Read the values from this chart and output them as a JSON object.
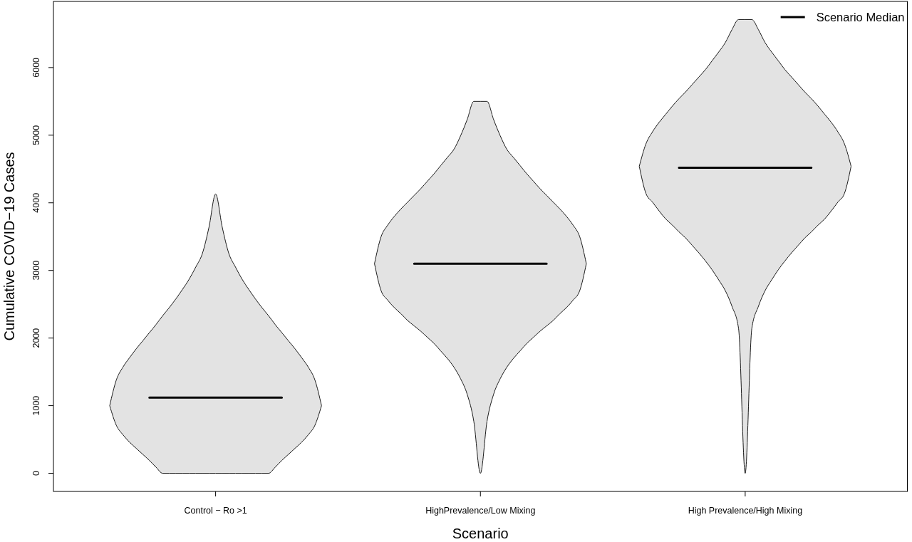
{
  "chart_data": {
    "type": "line",
    "xlabel": "Scenario",
    "ylabel": "Cumulative COVID−19 Cases",
    "categories": [
      null,
      null,
      null,
      null,
      null,
      null,
      null,
      null,
      null,
      null,
      null,
      null,
      null,
      null,
      null,
      null,
      null,
      null,
      null,
      null,
      null,
      null,
      null,
      null,
      "Control − Ro >1",
      null,
      null,
      null,
      null,
      null,
      null,
      null,
      null,
      null,
      null,
      null,
      null,
      null,
      null,
      null,
      null,
      null,
      null,
      null,
      null,
      null,
      null,
      null,
      null,
      null,
      null,
      null,
      null,
      null,
      null,
      null,
      null,
      null,
      null,
      null,
      null,
      null,
      null,
      null,
      "HighPrevalence/Low Mixing",
      null,
      null,
      null,
      null,
      null,
      null,
      null,
      null,
      null,
      null,
      null,
      null,
      null,
      null,
      null,
      null,
      null,
      null,
      null,
      null,
      null,
      null,
      null,
      null,
      null,
      null,
      null,
      null,
      null,
      null,
      null,
      null,
      null,
      null,
      null,
      null,
      null,
      null,
      null,
      "High Prevalence/High Mixing",
      null,
      null,
      null,
      null,
      null,
      null,
      null,
      null,
      null,
      null,
      null,
      null,
      null,
      null,
      null,
      null,
      null,
      null,
      null,
      null,
      null,
      null,
      null,
      null
    ],
    "ylim": [
      -268,
      6978
    ],
    "yticks": [
      0,
      1000,
      2000,
      3000,
      4000,
      5000,
      6000
    ],
    "legend": "top right",
    "series": [
      {
        "type": "area",
        "color": "#e3e3e3",
        "values": [
          null,
          null,
          null,
          null,
          null,
          null,
          null,
          null,
          null,
          null,
          null,
          null,
          null,
          null,
          null,
          null,
          null,
          null,
          null,
          null,
          null,
          null,
          null,
          null,
          null,
          null,
          null,
          null,
          null,
          null,
          null,
          null,
          null,
          null,
          null,
          null,
          null,
          null,
          null,
          null,
          null,
          null,
          null,
          null,
          null,
          null,
          null,
          null,
          null,
          null,
          null,
          null,
          null,
          null,
          null,
          null,
          null,
          null,
          null,
          null,
          null,
          null,
          null,
          null,
          null,
          null,
          null,
          null,
          null,
          null,
          null,
          null,
          null,
          null,
          null,
          null,
          null,
          null,
          null,
          null,
          null,
          null,
          null,
          null,
          null,
          null,
          null,
          null,
          null,
          null,
          null,
          null,
          null,
          null,
          null,
          null,
          null,
          null,
          null,
          null,
          null,
          null,
          null,
          null,
          null,
          null,
          null,
          null,
          null,
          null,
          null,
          null,
          null,
          null,
          null,
          null,
          null,
          null,
          null,
          null,
          null,
          null,
          null,
          null,
          null,
          null,
          null,
          null,
          null
        ],
        "lower": [
          null,
          null,
          null,
          null,
          null,
          null,
          null,
          null,
          1000,
          710,
          570,
          460,
          370,
          280,
          190,
          90,
          0,
          0,
          0,
          0,
          0,
          0,
          0,
          0,
          0,
          0,
          0,
          0,
          0,
          0,
          0,
          0,
          0,
          90,
          190,
          280,
          370,
          460,
          570,
          710,
          1000,
          null,
          null,
          null,
          null,
          null,
          null,
          null,
          null,
          null,
          null,
          null,
          null,
          null,
          null,
          null,
          null,
          null,
          null,
          null,
          null,
          null,
          null,
          null,
          null,
          null,
          null,
          null,
          null,
          null,
          null,
          null,
          null,
          null,
          null,
          null,
          null,
          null,
          null,
          null,
          null,
          null,
          null,
          null,
          null,
          null,
          null,
          null,
          null,
          null,
          null,
          null,
          null,
          null,
          null,
          null,
          null,
          null,
          null,
          null,
          null,
          null,
          null,
          null,
          null,
          null,
          null,
          null,
          null,
          null,
          null,
          null,
          null,
          null,
          null,
          null,
          null,
          null,
          null,
          null,
          null,
          null,
          null,
          null,
          null,
          null,
          null,
          null,
          null
        ],
        "upper": [
          null,
          null,
          null,
          null,
          null,
          null,
          null,
          null,
          1000,
          1380,
          1570,
          1710,
          1840,
          1960,
          2080,
          2200,
          2330,
          2450,
          2580,
          2720,
          2870,
          3050,
          3250,
          3640,
          4130,
          3640,
          3250,
          3050,
          2870,
          2720,
          2580,
          2450,
          2330,
          2200,
          2080,
          1960,
          1840,
          1710,
          1570,
          1380,
          1000,
          null,
          null,
          null,
          null,
          null,
          null,
          null,
          null,
          null,
          null,
          null,
          null,
          null,
          null,
          null,
          null,
          null,
          null,
          null,
          null,
          null,
          null,
          null,
          null,
          null,
          null,
          null,
          null,
          null,
          null,
          null,
          null,
          null,
          null,
          null,
          null,
          null,
          null,
          null,
          null,
          null,
          null,
          null,
          null,
          null,
          null,
          null,
          null,
          null,
          null,
          null,
          null,
          null,
          null,
          null,
          null,
          null,
          null,
          null,
          null,
          null,
          null,
          null,
          null,
          null,
          null,
          null,
          null,
          null,
          null,
          null,
          null,
          null,
          null,
          null,
          null,
          null,
          null,
          null,
          null,
          null,
          null,
          null,
          null,
          null,
          null,
          null,
          null
        ]
      },
      {
        "type": "area",
        "color": "#e3e3e3",
        "values": [
          null,
          null,
          null,
          null,
          null,
          null,
          null,
          null,
          null,
          null,
          null,
          null,
          null,
          null,
          null,
          null,
          null,
          null,
          null,
          null,
          null,
          null,
          null,
          null,
          null,
          null,
          null,
          null,
          null,
          null,
          null,
          null,
          null,
          null,
          null,
          null,
          null,
          null,
          null,
          null,
          null,
          null,
          null,
          null,
          null,
          null,
          null,
          null,
          null,
          null,
          null,
          null,
          null,
          null,
          null,
          null,
          null,
          null,
          null,
          null,
          null,
          null,
          null,
          null,
          null,
          null,
          null,
          null,
          null,
          null,
          null,
          null,
          null,
          null,
          null,
          null,
          null,
          null,
          null,
          null,
          null,
          null,
          null,
          null,
          null,
          null,
          null,
          null,
          null,
          null,
          null,
          null,
          null,
          null,
          null,
          null,
          null,
          null,
          null,
          null,
          null,
          null,
          null,
          null,
          null,
          null,
          null,
          null,
          null,
          null,
          null,
          null,
          null,
          null,
          null,
          null,
          null,
          null,
          null,
          null,
          null,
          null,
          null,
          null,
          null,
          null,
          null,
          null,
          null
        ],
        "lower": [
          null,
          null,
          null,
          null,
          null,
          null,
          null,
          null,
          null,
          null,
          null,
          null,
          null,
          null,
          null,
          null,
          null,
          null,
          null,
          null,
          null,
          null,
          null,
          null,
          null,
          null,
          null,
          null,
          null,
          null,
          null,
          null,
          null,
          null,
          null,
          null,
          null,
          null,
          null,
          null,
          null,
          null,
          null,
          null,
          null,
          null,
          null,
          null,
          3100,
          2700,
          2560,
          2450,
          2360,
          2260,
          2180,
          2100,
          2010,
          1920,
          1810,
          1700,
          1570,
          1400,
          1170,
          770,
          0,
          770,
          1170,
          1400,
          1570,
          1700,
          1810,
          1920,
          2010,
          2100,
          2180,
          2260,
          2360,
          2450,
          2560,
          2700,
          3100,
          null,
          null,
          null,
          null,
          null,
          null,
          null,
          null,
          null,
          null,
          null,
          null,
          null,
          null,
          null,
          null,
          null,
          null,
          null,
          null,
          null,
          null,
          null,
          null,
          null,
          null,
          null,
          null,
          null,
          null,
          null,
          null,
          null,
          null,
          null,
          null,
          null,
          null,
          null,
          null,
          null,
          null,
          null,
          null,
          null,
          null,
          null,
          null
        ],
        "upper": [
          null,
          null,
          null,
          null,
          null,
          null,
          null,
          null,
          null,
          null,
          null,
          null,
          null,
          null,
          null,
          null,
          null,
          null,
          null,
          null,
          null,
          null,
          null,
          null,
          null,
          null,
          null,
          null,
          null,
          null,
          null,
          null,
          null,
          null,
          null,
          null,
          null,
          null,
          null,
          null,
          null,
          null,
          null,
          null,
          null,
          null,
          null,
          null,
          3100,
          3500,
          3670,
          3800,
          3910,
          4010,
          4110,
          4210,
          4320,
          4430,
          4550,
          4670,
          4790,
          4990,
          5230,
          5500,
          5500,
          5500,
          5230,
          4990,
          4790,
          4670,
          4550,
          4430,
          4320,
          4210,
          4110,
          4010,
          3910,
          3800,
          3670,
          3500,
          3100,
          null,
          null,
          null,
          null,
          null,
          null,
          null,
          null,
          null,
          null,
          null,
          null,
          null,
          null,
          null,
          null,
          null,
          null,
          null,
          null,
          null,
          null,
          null,
          null,
          null,
          null,
          null,
          null,
          null,
          null,
          null,
          null,
          null,
          null,
          null,
          null,
          null,
          null,
          null,
          null,
          null,
          null,
          null,
          null,
          null,
          null,
          null,
          null
        ]
      },
      {
        "type": "area",
        "color": "#e3e3e3",
        "values": [
          null,
          null,
          null,
          null,
          null,
          null,
          null,
          null,
          null,
          null,
          null,
          null,
          null,
          null,
          null,
          null,
          null,
          null,
          null,
          null,
          null,
          null,
          null,
          null,
          null,
          null,
          null,
          null,
          null,
          null,
          null,
          null,
          null,
          null,
          null,
          null,
          null,
          null,
          null,
          null,
          null,
          null,
          null,
          null,
          null,
          null,
          null,
          null,
          null,
          null,
          null,
          null,
          null,
          null,
          null,
          null,
          null,
          null,
          null,
          null,
          null,
          null,
          null,
          null,
          null,
          null,
          null,
          null,
          null,
          null,
          null,
          null,
          null,
          null,
          null,
          null,
          null,
          null,
          null,
          null,
          null,
          null,
          null,
          null,
          null,
          null,
          null,
          null,
          null,
          null,
          null,
          null,
          null,
          null,
          null,
          null,
          null,
          null,
          null,
          null,
          null,
          null,
          null,
          null,
          null,
          null,
          null,
          null,
          null,
          null,
          null,
          null,
          null,
          null,
          null,
          null,
          null,
          null,
          null,
          null,
          null,
          null,
          null,
          null,
          null,
          null,
          null,
          null,
          null
        ],
        "lower": [
          null,
          null,
          null,
          null,
          null,
          null,
          null,
          null,
          null,
          null,
          null,
          null,
          null,
          null,
          null,
          null,
          null,
          null,
          null,
          null,
          null,
          null,
          null,
          null,
          null,
          null,
          null,
          null,
          null,
          null,
          null,
          null,
          null,
          null,
          null,
          null,
          null,
          null,
          null,
          null,
          null,
          null,
          null,
          null,
          null,
          null,
          null,
          null,
          null,
          null,
          null,
          null,
          null,
          null,
          null,
          null,
          null,
          null,
          null,
          null,
          null,
          null,
          null,
          null,
          null,
          null,
          null,
          null,
          null,
          null,
          null,
          null,
          null,
          null,
          null,
          null,
          null,
          null,
          null,
          null,
          null,
          null,
          null,
          null,
          null,
          null,
          null,
          null,
          4540,
          4140,
          4010,
          3880,
          3760,
          3670,
          3570,
          3480,
          3370,
          3260,
          3140,
          3010,
          2860,
          2700,
          2470,
          2140,
          0,
          2140,
          2470,
          2700,
          2860,
          3010,
          3140,
          3260,
          3370,
          3480,
          3570,
          3670,
          3760,
          3880,
          4010,
          4140,
          4540,
          null,
          null,
          null,
          null,
          null,
          null,
          null,
          null
        ],
        "upper": [
          null,
          null,
          null,
          null,
          null,
          null,
          null,
          null,
          null,
          null,
          null,
          null,
          null,
          null,
          null,
          null,
          null,
          null,
          null,
          null,
          null,
          null,
          null,
          null,
          null,
          null,
          null,
          null,
          null,
          null,
          null,
          null,
          null,
          null,
          null,
          null,
          null,
          null,
          null,
          null,
          null,
          null,
          null,
          null,
          null,
          null,
          null,
          null,
          null,
          null,
          null,
          null,
          null,
          null,
          null,
          null,
          null,
          null,
          null,
          null,
          null,
          null,
          null,
          null,
          null,
          null,
          null,
          null,
          null,
          null,
          null,
          null,
          null,
          null,
          null,
          null,
          null,
          null,
          null,
          null,
          null,
          null,
          null,
          null,
          null,
          null,
          null,
          null,
          4540,
          4870,
          5050,
          5190,
          5310,
          5430,
          5540,
          5640,
          5750,
          5860,
          5970,
          6100,
          6230,
          6370,
          6560,
          6710,
          6710,
          6710,
          6560,
          6370,
          6230,
          6100,
          5970,
          5860,
          5750,
          5640,
          5540,
          5430,
          5310,
          5190,
          5050,
          4870,
          4540,
          null,
          null,
          null,
          null,
          null,
          null,
          null,
          null
        ]
      },
      {
        "name": "Scenario Median",
        "type": "line",
        "color": "#000000",
        "values": [
          null,
          null,
          null,
          null,
          null,
          null,
          null,
          null,
          null,
          null,
          null,
          null,
          null,
          null,
          1120,
          1120,
          1120,
          1120,
          1120,
          1120,
          1120,
          1120,
          1120,
          1120,
          1120,
          1120,
          1120,
          1120,
          1120,
          1120,
          1120,
          1120,
          1120,
          1120,
          1120,
          null,
          null,
          null,
          null,
          null,
          null,
          null,
          null,
          null,
          null,
          null,
          null,
          null,
          null,
          null,
          null,
          null,
          null,
          null,
          3100,
          3100,
          3100,
          3100,
          3100,
          3100,
          3100,
          3100,
          3100,
          3100,
          3100,
          3100,
          3100,
          3100,
          3100,
          3100,
          3100,
          3100,
          3100,
          3100,
          3100,
          null,
          null,
          null,
          null,
          null,
          null,
          null,
          null,
          null,
          null,
          null,
          null,
          null,
          null,
          null,
          null,
          null,
          null,
          null,
          4520,
          4520,
          4520,
          4520,
          4520,
          4520,
          4520,
          4520,
          4520,
          4520,
          4520,
          4520,
          4520,
          4520,
          4520,
          4520,
          4520,
          4520,
          4520,
          4520,
          4520,
          null,
          null,
          null,
          null,
          null,
          null,
          null,
          null,
          null,
          null,
          null,
          null,
          null,
          null
        ]
      }
    ]
  }
}
